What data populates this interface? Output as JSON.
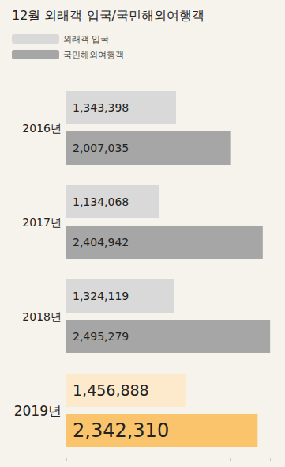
{
  "chart_data": {
    "type": "bar",
    "title": "12월 외래객 입국/국민해외여행객",
    "orientation": "horizontal",
    "categories": [
      "2016년",
      "2017년",
      "2018년",
      "2019년"
    ],
    "series": [
      {
        "name": "외래객 입국",
        "color": "#d9d9d9",
        "colors": [
          "#d9d9d9",
          "#d9d9d9",
          "#d9d9d9",
          "#fde9cb"
        ],
        "values": [
          1343398,
          1134068,
          1324119,
          1456888
        ],
        "value_labels": [
          "1,343,398",
          "1,134,068",
          "1,324,119",
          "1,456,888"
        ]
      },
      {
        "name": "국민해외여행객",
        "color": "#a6a6a6",
        "colors": [
          "#a6a6a6",
          "#a6a6a6",
          "#a6a6a6",
          "#f9c46b"
        ],
        "values": [
          2007035,
          2404942,
          2495279,
          2342310
        ],
        "value_labels": [
          "2,007,035",
          "2,404,942",
          "2,495,279",
          "2,342,310"
        ]
      }
    ],
    "xlim": [
      0,
      2600000
    ],
    "xticks": [
      0,
      500000,
      1000000,
      1500000,
      2000000,
      2500000
    ],
    "data_labels": true,
    "tick_labels": "y",
    "legend": "top-left",
    "grid": false
  }
}
